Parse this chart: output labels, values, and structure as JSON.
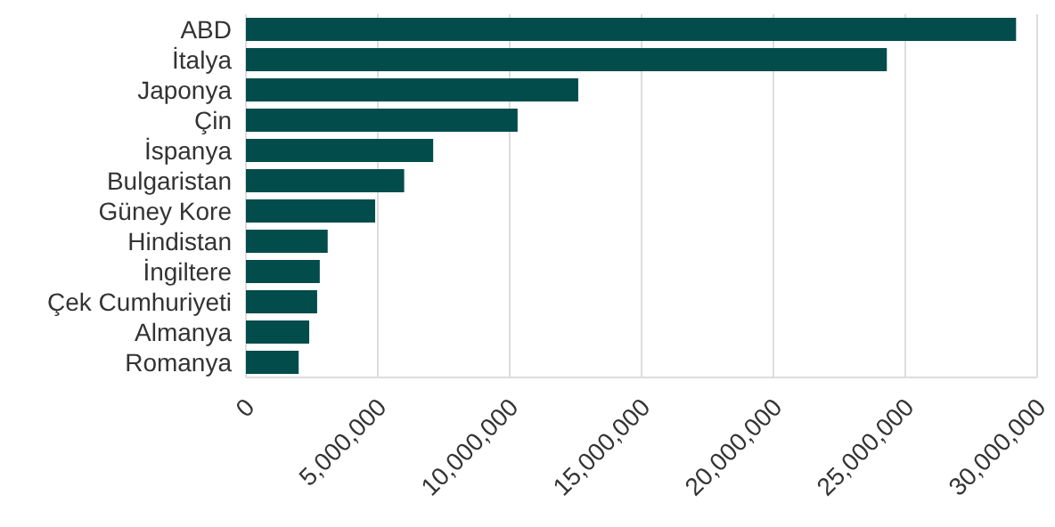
{
  "chart_data": {
    "type": "bar",
    "orientation": "horizontal",
    "categories": [
      "ABD",
      "İtalya",
      "Japonya",
      "Çin",
      "İspanya",
      "Bulgaristan",
      "Güney Kore",
      "Hindistan",
      "İngiltere",
      "Çek Cumhuriyeti",
      "Almanya",
      "Romanya"
    ],
    "values": [
      29200000,
      24300000,
      12600000,
      10300000,
      7100000,
      6000000,
      4900000,
      3100000,
      2800000,
      2700000,
      2400000,
      2000000
    ],
    "color": "#034c4c",
    "xlim": [
      0,
      30000000
    ],
    "xticks": [
      {
        "value": 0,
        "label": "0"
      },
      {
        "value": 5000000,
        "label": "5,000,000"
      },
      {
        "value": 10000000,
        "label": "10,000,000"
      },
      {
        "value": 15000000,
        "label": "15,000,000"
      },
      {
        "value": 20000000,
        "label": "20,000,000"
      },
      {
        "value": 25000000,
        "label": "25,000,000"
      },
      {
        "value": 30000000,
        "label": "30,000,000"
      }
    ],
    "grid": "x",
    "legend": false
  }
}
